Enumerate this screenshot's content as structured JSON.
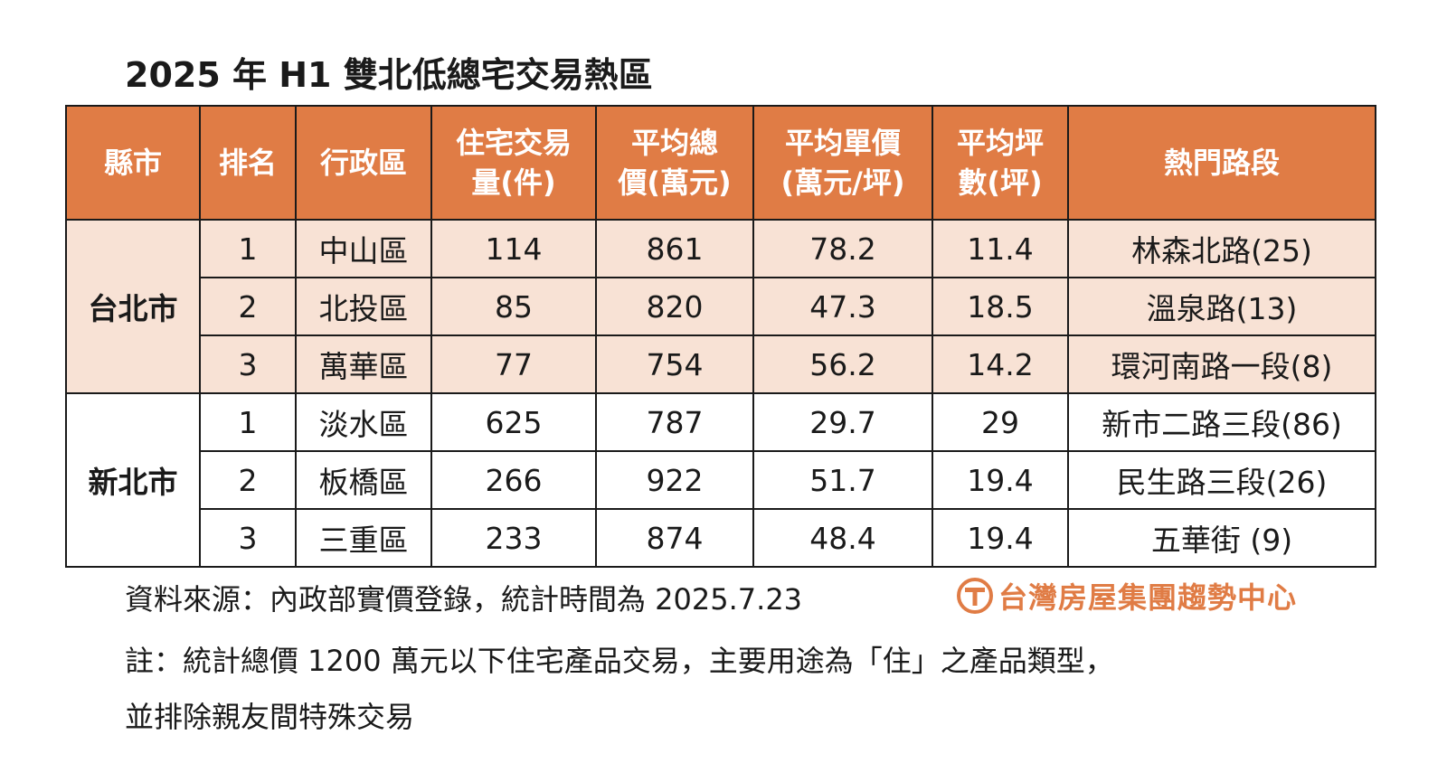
{
  "title": "2025 年 H1 雙北低總宅交易熱區",
  "table": {
    "headers": [
      [
        "縣市"
      ],
      [
        "排名"
      ],
      [
        "行政區"
      ],
      [
        "住宅交易",
        "量(件)"
      ],
      [
        "平均總",
        "價(萬元)"
      ],
      [
        "平均單價",
        "(萬元/坪)"
      ],
      [
        "平均坪",
        "數(坪)"
      ],
      [
        "熱門路段"
      ]
    ],
    "groups": [
      {
        "city": "台北市",
        "rows": [
          [
            "1",
            "中山區",
            "114",
            "861",
            "78.2",
            "11.4",
            "林森北路(25)"
          ],
          [
            "2",
            "北投區",
            "85",
            "820",
            "47.3",
            "18.5",
            "溫泉路(13)"
          ],
          [
            "3",
            "萬華區",
            "77",
            "754",
            "56.2",
            "14.2",
            "環河南路一段(8)"
          ]
        ]
      },
      {
        "city": "新北市",
        "rows": [
          [
            "1",
            "淡水區",
            "625",
            "787",
            "29.7",
            "29",
            "新市二路三段(86)"
          ],
          [
            "2",
            "板橋區",
            "266",
            "922",
            "51.7",
            "19.4",
            "民生路三段(26)"
          ],
          [
            "3",
            "三重區",
            "233",
            "874",
            "48.4",
            "19.4",
            "五華街 (9)"
          ]
        ]
      }
    ]
  },
  "source": "資料來源：內政部實價登錄，統計時間為 2025.7.23",
  "note_line1": "註：統計總價 1200 萬元以下住宅產品交易，主要用途為「住」之產品類型，",
  "note_line2": "並排除親友間特殊交易",
  "brand": {
    "name": "台灣房屋集團趨勢中心",
    "icon": "taiwan-realty-logo-icon",
    "color": "#e07c45"
  },
  "colors": {
    "header_bg": "#e07c45",
    "taipei_row_bg": "#f8e2d5",
    "new_taipei_row_bg": "#ffffff"
  }
}
